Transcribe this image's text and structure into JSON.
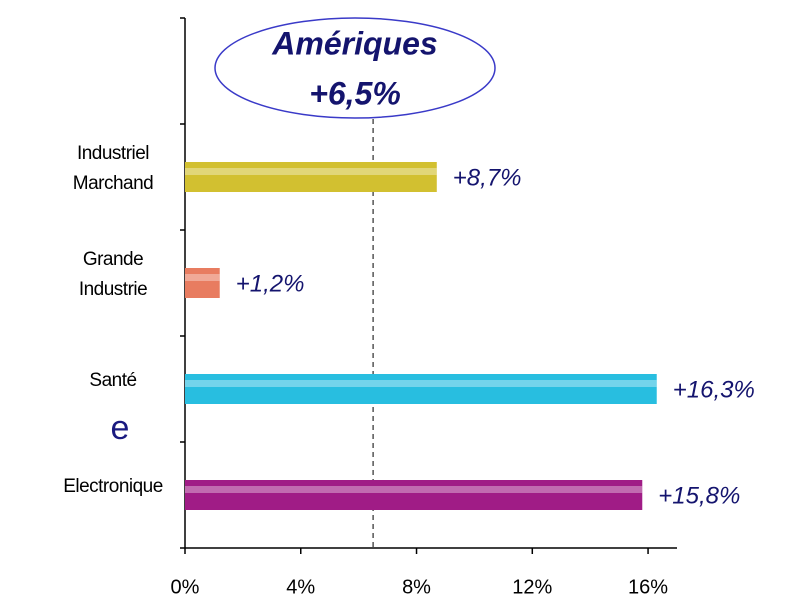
{
  "chart_data": {
    "type": "barh",
    "annotation": {
      "title": "Amériques",
      "label": "+6,5%",
      "value": 6.5
    },
    "categories": [
      "Industriel Marchand",
      "Grande Industrie",
      "Santé",
      "Electronique"
    ],
    "values": [
      8.7,
      1.2,
      16.3,
      15.8
    ],
    "value_labels": [
      "+8,7%",
      "+1,2%",
      "+16,3%",
      "+15,8%"
    ],
    "colors": [
      "#d2c030",
      "#e87c60",
      "#28bee0",
      "#a01c86"
    ],
    "xlim": [
      0,
      17
    ],
    "xticks": [
      {
        "value": 0,
        "label": "0%"
      },
      {
        "value": 4,
        "label": "4%"
      },
      {
        "value": 8,
        "label": "8%"
      },
      {
        "value": 12,
        "label": "12%"
      },
      {
        "value": 16,
        "label": "16%"
      }
    ],
    "fragment": "e"
  }
}
